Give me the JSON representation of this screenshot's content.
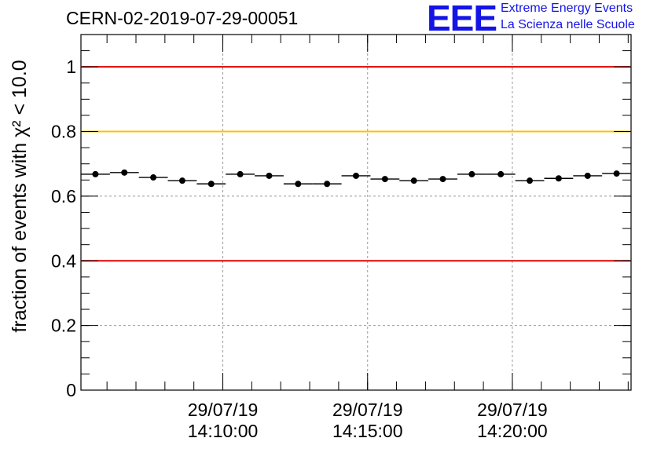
{
  "header": {
    "run_id": "CERN-02-2019-07-29-00051",
    "logo_mark": "EEE",
    "logo_line1": "Extreme Energy Events",
    "logo_line2": "La Scienza nelle Scuole"
  },
  "chart_data": {
    "type": "scatter",
    "title": "CERN-02-2019-07-29-00051",
    "xlabel": "",
    "ylabel": "fraction of events with χ² < 10.0",
    "ylim": [
      0,
      1.1
    ],
    "xlim_minutes": [
      14.0,
      33.0
    ],
    "yticks": [
      {
        "value": 0,
        "label": "0"
      },
      {
        "value": 0.2,
        "label": "0.2"
      },
      {
        "value": 0.4,
        "label": "0.4"
      },
      {
        "value": 0.6,
        "label": "0.6"
      },
      {
        "value": 0.8,
        "label": "0.8"
      },
      {
        "value": 1,
        "label": "1"
      }
    ],
    "xticks": [
      {
        "minute": 18.9,
        "date": "29/07/19",
        "time": "14:10:00"
      },
      {
        "minute": 23.9,
        "date": "29/07/19",
        "time": "14:15:00"
      },
      {
        "minute": 28.9,
        "date": "29/07/19",
        "time": "14:20:00"
      }
    ],
    "x_minor_step_minutes": 1.0,
    "bin_width_minutes": 1.0,
    "grid": true,
    "reference_lines": [
      {
        "value": 1.0,
        "color": "#e00000"
      },
      {
        "value": 0.8,
        "color": "#ffc000"
      },
      {
        "value": 0.4,
        "color": "#e00000"
      }
    ],
    "series": [
      {
        "name": "fraction",
        "color": "#000000",
        "x": [
          14.5,
          15.5,
          16.5,
          17.5,
          18.5,
          19.5,
          20.5,
          21.5,
          22.5,
          23.5,
          24.5,
          25.5,
          26.5,
          27.5,
          28.5,
          29.5,
          30.5,
          31.5,
          32.5
        ],
        "values": [
          0.668,
          0.673,
          0.658,
          0.648,
          0.638,
          0.668,
          0.663,
          0.638,
          0.638,
          0.663,
          0.653,
          0.648,
          0.653,
          0.668,
          0.668,
          0.648,
          0.655,
          0.663,
          0.67
        ]
      }
    ]
  }
}
